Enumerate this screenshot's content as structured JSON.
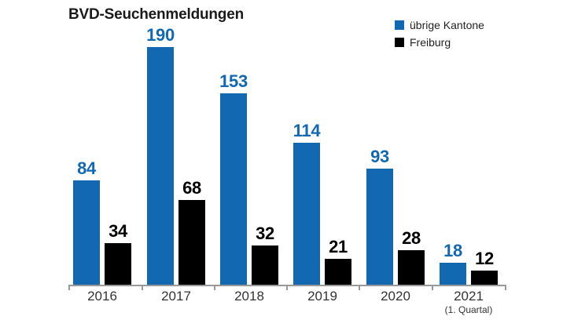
{
  "chart_data": {
    "type": "bar",
    "title": "BVD-Seuchenmeldungen",
    "categories": [
      "2016",
      "2017",
      "2018",
      "2019",
      "2020",
      "2021"
    ],
    "category_note": {
      "category_index": 5,
      "text": "(1. Quartal)"
    },
    "series": [
      {
        "name": "übrige Kantone",
        "color": "#1268b1",
        "values": [
          84,
          190,
          153,
          114,
          93,
          18
        ]
      },
      {
        "name": "Freiburg",
        "color": "#000000",
        "values": [
          34,
          68,
          32,
          21,
          28,
          12
        ]
      }
    ],
    "value_labels_shown": true,
    "xlabel": "",
    "ylabel": "",
    "ylim": [
      0,
      200
    ],
    "grid": false,
    "y_axis_shown": false,
    "legend_position": "top-right",
    "axis_color": "#999999",
    "label_color": "#333333"
  }
}
